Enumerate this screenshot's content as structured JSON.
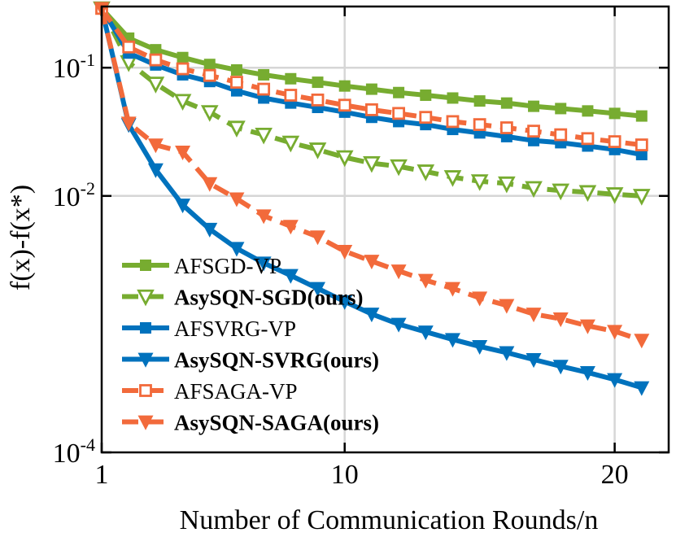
{
  "chart_data": {
    "type": "line",
    "title": "",
    "xlabel": "Number of Communication Rounds/n",
    "ylabel": "f(x)-f(x*)",
    "xscale": "linear",
    "yscale": "log",
    "xlim": [
      1,
      22
    ],
    "ylim": [
      0.0001,
      0.3
    ],
    "xticks": [
      {
        "value": 1,
        "label": "1"
      },
      {
        "value": 10,
        "label": "10"
      },
      {
        "value": 20,
        "label": "20"
      }
    ],
    "yticks": [
      {
        "value": 0.1,
        "base": "10",
        "exp": "-1"
      },
      {
        "value": 0.01,
        "base": "10",
        "exp": "-2"
      },
      {
        "value": 0.0001,
        "base": "10",
        "exp": "-4"
      }
    ],
    "grid": true,
    "legend_position": "bottom-left",
    "x": [
      1,
      2,
      3,
      4,
      5,
      6,
      7,
      8,
      9,
      10,
      11,
      12,
      13,
      14,
      15,
      16,
      17,
      18,
      19,
      20,
      21
    ],
    "series": [
      {
        "name": "AFSGD-VP",
        "color": "#77AC30",
        "line_style": "solid",
        "marker": "square-filled",
        "bold": false,
        "values": [
          0.29,
          0.17,
          0.138,
          0.12,
          0.106,
          0.096,
          0.088,
          0.082,
          0.077,
          0.072,
          0.068,
          0.064,
          0.061,
          0.058,
          0.055,
          0.053,
          0.05,
          0.048,
          0.046,
          0.044,
          0.042
        ]
      },
      {
        "name": "AsySQN-SGD(ours)",
        "color": "#77AC30",
        "line_style": "dashed",
        "marker": "triangle-down-open",
        "bold": true,
        "values": [
          0.29,
          0.11,
          0.075,
          0.055,
          0.045,
          0.034,
          0.03,
          0.026,
          0.023,
          0.02,
          0.018,
          0.017,
          0.0155,
          0.014,
          0.013,
          0.0125,
          0.0115,
          0.011,
          0.0107,
          0.0103,
          0.01
        ]
      },
      {
        "name": "AFSVRG-VP",
        "color": "#0072BD",
        "line_style": "solid",
        "marker": "square-filled",
        "bold": false,
        "values": [
          0.29,
          0.13,
          0.105,
          0.088,
          0.078,
          0.066,
          0.058,
          0.053,
          0.049,
          0.045,
          0.041,
          0.038,
          0.036,
          0.033,
          0.031,
          0.029,
          0.027,
          0.026,
          0.0245,
          0.023,
          0.021
        ]
      },
      {
        "name": "AsySQN-SVRG(ours)",
        "color": "#0072BD",
        "line_style": "solid",
        "marker": "triangle-down-filled",
        "bold": true,
        "values": [
          0.29,
          0.036,
          0.016,
          0.0085,
          0.0055,
          0.0039,
          0.003,
          0.0024,
          0.0019,
          0.0015,
          0.0012,
          0.001,
          0.00087,
          0.00076,
          0.00067,
          0.0006,
          0.00053,
          0.00047,
          0.00042,
          0.00037,
          0.00032
        ]
      },
      {
        "name": "AFSAGA-VP",
        "color": "#F26A3B",
        "line_style": "dashed",
        "marker": "square-open",
        "bold": false,
        "values": [
          0.29,
          0.145,
          0.115,
          0.098,
          0.087,
          0.077,
          0.068,
          0.061,
          0.056,
          0.051,
          0.047,
          0.044,
          0.041,
          0.038,
          0.036,
          0.034,
          0.032,
          0.03,
          0.028,
          0.0265,
          0.025
        ]
      },
      {
        "name": "AsySQN-SAGA(ours)",
        "color": "#F26A3B",
        "line_style": "dashed",
        "marker": "triangle-down-filled",
        "bold": true,
        "values": [
          0.29,
          0.037,
          0.025,
          0.022,
          0.0125,
          0.0095,
          0.007,
          0.0058,
          0.0048,
          0.0037,
          0.0031,
          0.0026,
          0.0022,
          0.0019,
          0.0016,
          0.0014,
          0.0012,
          0.0011,
          0.00097,
          0.00088,
          0.00075
        ]
      }
    ]
  }
}
